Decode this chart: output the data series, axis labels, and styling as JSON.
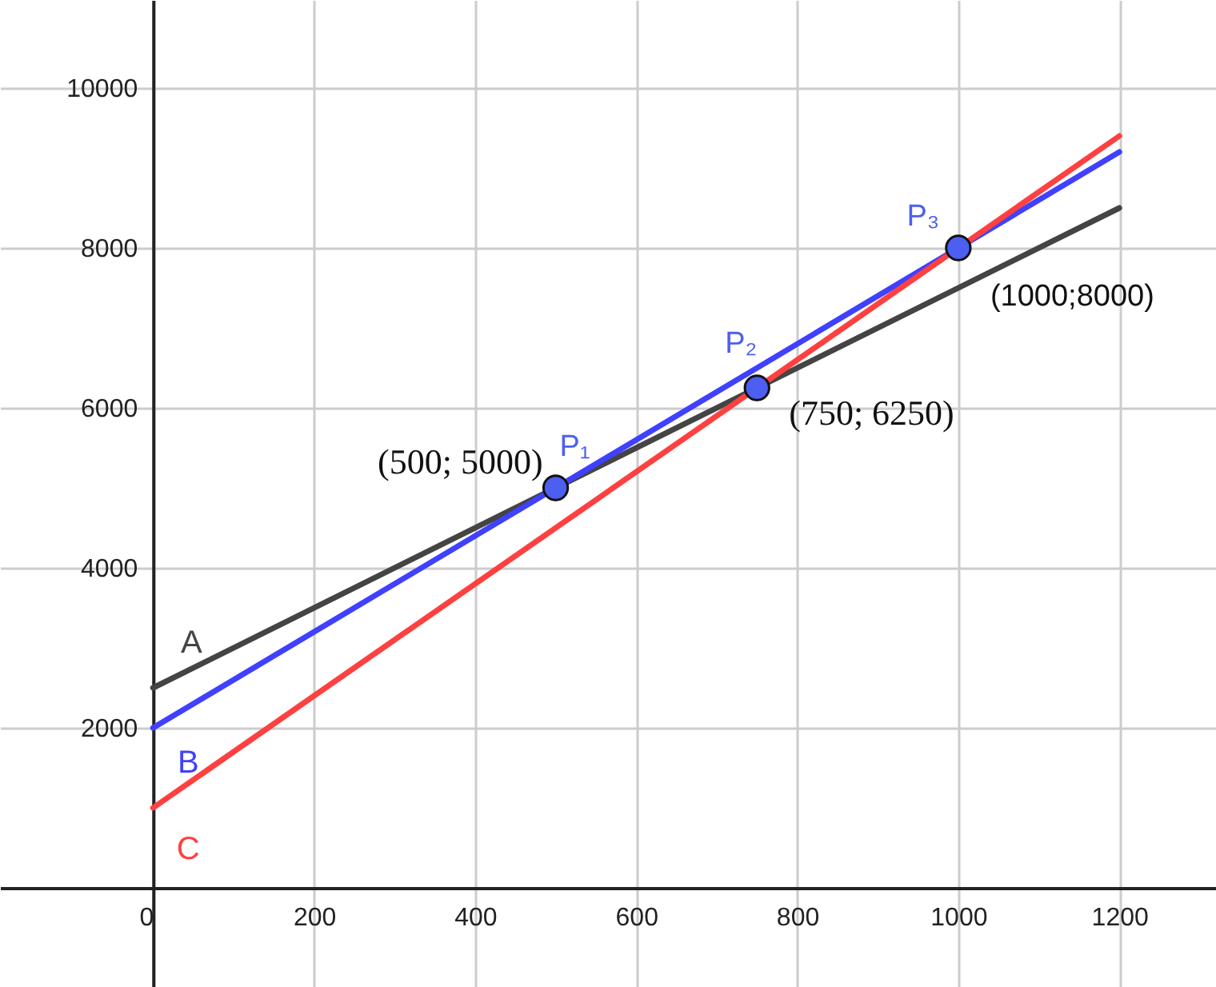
{
  "chart_data": {
    "type": "line",
    "xlim": [
      -190,
      1320
    ],
    "ylim": [
      -1240,
      11100
    ],
    "xticks": [
      0,
      200,
      400,
      600,
      800,
      1000,
      1200
    ],
    "yticks": [
      {
        "value": 0,
        "label": null
      },
      2000,
      4000,
      6000,
      8000,
      10000
    ],
    "grid": true,
    "line_style": "solid",
    "series": [
      {
        "name": "A",
        "color": "#444444",
        "x": [
          0,
          1200
        ],
        "values": [
          2500,
          8500
        ]
      },
      {
        "name": "B",
        "color": "#4040ff",
        "x": [
          0,
          1200
        ],
        "values": [
          2000,
          9200
        ]
      },
      {
        "name": "C",
        "color": "#ff4040",
        "x": [
          0,
          1200
        ],
        "values": [
          1000,
          9400
        ]
      },
      {
        "type": "scatter",
        "marker": "circle",
        "color": "#4d5ff0",
        "x": [
          500,
          750,
          1000
        ],
        "values": [
          5000,
          6250,
          8000
        ]
      }
    ],
    "annotations": [
      {
        "text": "P₁",
        "x": 500,
        "y": 5000
      },
      {
        "text": "P₂",
        "x": 750,
        "y": 6250
      },
      {
        "text": "P₃",
        "x": 1000,
        "y": 8000
      },
      {
        "text": "(500; 5000)",
        "x": 500,
        "y": 5000
      },
      {
        "text": "(750; 6250)",
        "x": 750,
        "y": 6250
      },
      {
        "text": "(1000;8000)",
        "x": 1000,
        "y": 8000
      }
    ]
  }
}
